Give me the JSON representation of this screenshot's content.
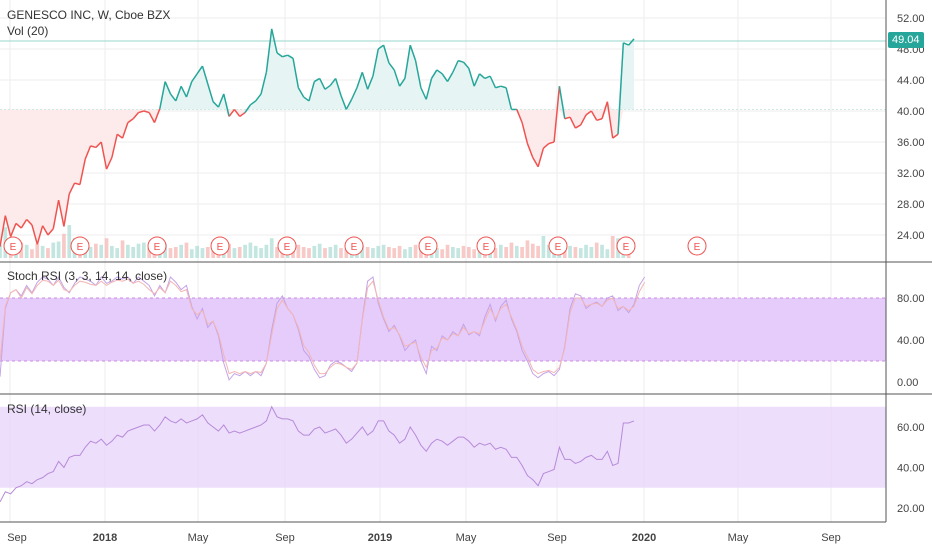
{
  "header": {
    "symbol_title": "GENESCO INC, W, Cboe BZX",
    "volume_title": "Vol (20)"
  },
  "last_price": "49.04",
  "colors": {
    "up": "#26a69a",
    "down": "#ef5350",
    "fill_up": "#e6f5f3",
    "fill_down": "#fdeaea",
    "rsi_band": "#e9d6fb",
    "stoch_band": "#e6ccfb",
    "stoch_k": "#c3a3e8",
    "stoch_d": "#f3b6b3",
    "earnings": "#ef5350",
    "grid": "#eeeeee"
  },
  "chart_data": [
    {
      "type": "line",
      "title": "GENESCO INC, W, Cboe BZX",
      "panel": "price",
      "ylim": [
        20,
        54
      ],
      "y_ticks": [
        "52.00",
        "48.00",
        "44.00",
        "40.00",
        "36.00",
        "32.00",
        "28.00",
        "24.00"
      ],
      "x_ticks": [
        "Sep",
        "2018",
        "May",
        "Sep",
        "2019",
        "May",
        "Sep",
        "2020",
        "May",
        "Sep"
      ],
      "reference_level": 40.2,
      "series": [
        {
          "values": [
            22.5,
            26.5,
            23.8,
            25.5,
            24.9,
            26.0,
            25.3,
            22.8,
            25.2,
            24.0,
            24.8,
            28.5,
            25.1,
            29.3,
            30.7,
            30.5,
            33.8,
            35.5,
            35.3,
            36.0,
            32.5,
            34.0,
            37.0,
            36.5,
            38.5,
            39.0,
            39.8,
            40.0,
            39.8,
            38.5,
            40.3,
            43.8,
            42.2,
            41.3,
            43.2,
            41.8,
            43.8,
            44.8,
            45.8,
            43.5,
            41.2,
            40.5,
            42.2,
            39.3,
            40.2,
            39.3,
            39.8,
            40.8,
            41.3,
            42.2,
            45.0,
            50.6,
            47.5,
            47.0,
            47.2,
            46.8,
            43.0,
            41.8,
            41.3,
            43.8,
            44.2,
            42.8,
            43.3,
            44.2,
            42.0,
            40.2,
            41.5,
            43.0,
            45.0,
            42.8,
            44.5,
            48.0,
            48.5,
            46.2,
            45.3,
            43.2,
            44.2,
            48.5,
            46.5,
            43.0,
            41.5,
            44.2,
            45.3,
            44.8,
            43.8,
            45.0,
            46.5,
            46.3,
            45.5,
            43.2,
            44.8,
            44.2,
            44.5,
            43.0,
            43.2,
            43.0,
            40.2,
            40.2,
            38.5,
            35.8,
            34.0,
            32.8,
            35.2,
            35.8,
            36.0,
            43.2,
            39.0,
            39.2,
            37.8,
            38.2,
            39.5,
            40.0,
            38.8,
            39.0,
            41.2,
            36.5,
            37.0,
            48.8,
            48.5,
            49.3
          ]
        }
      ]
    },
    {
      "type": "bar",
      "title": "Vol (20)",
      "panel": "volume",
      "values": [
        12,
        28,
        10,
        15,
        14,
        12,
        8,
        13,
        11,
        9,
        14,
        15,
        22,
        30,
        18,
        12,
        8,
        10,
        13,
        12,
        18,
        11,
        9,
        16,
        12,
        10,
        13,
        14,
        9,
        11,
        15,
        13,
        9,
        10,
        12,
        14,
        8,
        11,
        9,
        10,
        12,
        9,
        11,
        13,
        9,
        10,
        12,
        14,
        11,
        9,
        12,
        18,
        10,
        9,
        11,
        8,
        12,
        10,
        9,
        11,
        13,
        9,
        10,
        12,
        9,
        8,
        11,
        13,
        12,
        10,
        9,
        11,
        12,
        10,
        9,
        11,
        8,
        10,
        12,
        9,
        10,
        11,
        9,
        8,
        12,
        10,
        9,
        11,
        10,
        8,
        9,
        10,
        11,
        9,
        12,
        10,
        14,
        11,
        10,
        16,
        13,
        11,
        20,
        12,
        10,
        13,
        9,
        11,
        10,
        9,
        12,
        10,
        14,
        12,
        8,
        20,
        18,
        12,
        11
      ]
    },
    {
      "type": "line",
      "title": "Stoch RSI (3, 3, 14, 14, close)",
      "panel": "stoch_rsi",
      "ylim": [
        -5,
        103
      ],
      "y_ticks": [
        "80.00",
        "40.00",
        "0.00"
      ],
      "band": [
        20,
        80
      ],
      "series": [
        {
          "values": [
            5,
            70,
            85,
            88,
            82,
            92,
            85,
            95,
            100,
            98,
            92,
            100,
            90,
            85,
            94,
            100,
            98,
            96,
            92,
            100,
            94,
            96,
            100,
            98,
            100,
            94,
            100,
            96,
            92,
            82,
            92,
            85,
            100,
            95,
            88,
            92,
            72,
            60,
            70,
            52,
            58,
            44,
            18,
            2,
            8,
            6,
            10,
            6,
            10,
            6,
            18,
            50,
            75,
            82,
            70,
            64,
            50,
            30,
            24,
            12,
            4,
            6,
            16,
            20,
            18,
            14,
            10,
            18,
            60,
            96,
            100,
            75,
            60,
            48,
            54,
            44,
            30,
            36,
            40,
            20,
            8,
            34,
            30,
            44,
            40,
            48,
            44,
            55,
            45,
            48,
            44,
            62,
            74,
            58,
            72,
            78,
            60,
            48,
            30,
            20,
            8,
            4,
            8,
            10,
            6,
            12,
            34,
            70,
            84,
            82,
            70,
            74,
            76,
            72,
            80,
            82,
            68,
            72,
            66,
            74,
            92,
            100
          ]
        },
        {
          "values": [
            20,
            72,
            85,
            88,
            80,
            90,
            84,
            92,
            97,
            96,
            92,
            97,
            88,
            86,
            92,
            96,
            95,
            93,
            92,
            96,
            92,
            95,
            97,
            96,
            98,
            94,
            96,
            93,
            88,
            84,
            90,
            85,
            96,
            92,
            86,
            88,
            70,
            64,
            68,
            55,
            58,
            46,
            26,
            8,
            10,
            8,
            10,
            8,
            10,
            9,
            18,
            45,
            70,
            78,
            70,
            64,
            52,
            35,
            28,
            16,
            8,
            8,
            14,
            18,
            17,
            14,
            12,
            18,
            58,
            90,
            96,
            78,
            62,
            50,
            52,
            45,
            34,
            36,
            38,
            24,
            14,
            30,
            32,
            42,
            40,
            46,
            44,
            52,
            46,
            48,
            46,
            58,
            70,
            60,
            70,
            74,
            62,
            50,
            34,
            24,
            12,
            8,
            10,
            11,
            9,
            14,
            32,
            66,
            80,
            80,
            72,
            74,
            75,
            72,
            78,
            80,
            70,
            72,
            68,
            72,
            86,
            95
          ]
        }
      ]
    },
    {
      "type": "line",
      "title": "RSI (14, close)",
      "panel": "rsi",
      "ylim": [
        14,
        72
      ],
      "y_ticks": [
        "60.00",
        "40.00",
        "20.00"
      ],
      "band": [
        30,
        70
      ],
      "series": [
        {
          "values": [
            23,
            28,
            27,
            30,
            31,
            33,
            32,
            34,
            35,
            37,
            38,
            43,
            40,
            45,
            46,
            46,
            50,
            53,
            52,
            54,
            51,
            53,
            56,
            55,
            58,
            59,
            60,
            61,
            61,
            58,
            61,
            65,
            63,
            62,
            64,
            62,
            63,
            64,
            66,
            62,
            60,
            58,
            61,
            57,
            58,
            57,
            58,
            59,
            60,
            61,
            63,
            70,
            65,
            64,
            64,
            63,
            58,
            56,
            56,
            59,
            60,
            57,
            58,
            59,
            56,
            52,
            54,
            57,
            60,
            56,
            58,
            63,
            63,
            58,
            56,
            52,
            54,
            60,
            56,
            51,
            48,
            52,
            54,
            53,
            51,
            53,
            55,
            55,
            53,
            50,
            52,
            51,
            52,
            49,
            50,
            49,
            45,
            45,
            41,
            36,
            34,
            31,
            37,
            38,
            39,
            50,
            44,
            44,
            42,
            43,
            45,
            46,
            44,
            44,
            48,
            41,
            42,
            62,
            62,
            63
          ]
        }
      ]
    }
  ],
  "earnings_marker_label": "E"
}
